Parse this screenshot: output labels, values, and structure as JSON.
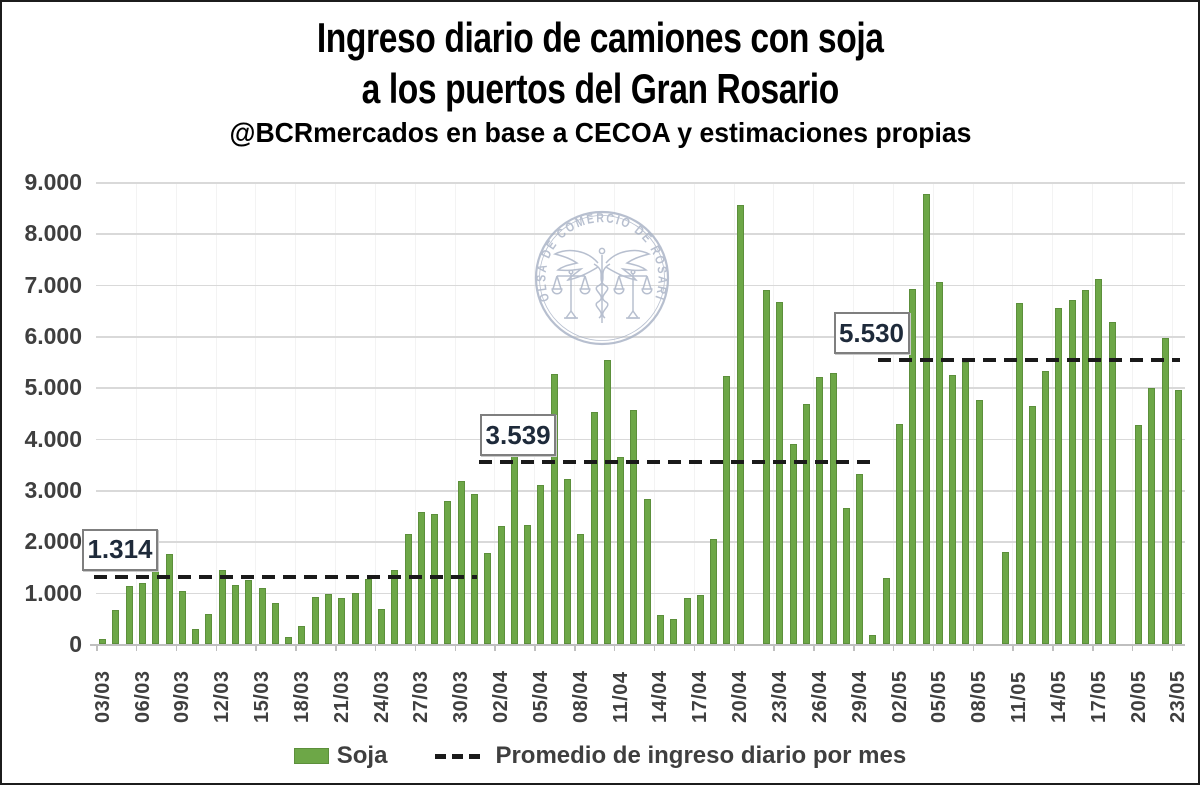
{
  "header": {
    "title_line1": "Ingreso diario de camiones con soja",
    "title_line2": "a los puertos del Gran Rosario",
    "source": "@BCRmercados en base a CECOA y estimaciones propias"
  },
  "legend": {
    "soja_label": "Soja",
    "average_label": "Promedio de ingreso diario por mes"
  },
  "watermark": {
    "text": "BOLSA DE COMERCIO DE ROSARIO"
  },
  "colors": {
    "bar_fill": "#6DA747",
    "bar_edge": "#5C8F3B",
    "average_line": "#1A1A1A",
    "gridline": "#D9D9D9",
    "axis_line": "#BFBFBF",
    "text_dark": "#3F3F3F",
    "watermark": "#A8B2C5",
    "label_box_border": "#7F7F7F",
    "label_text": "#1E2A3A"
  },
  "chart_data": {
    "type": "bar",
    "title": "Ingreso diario de camiones con soja a los puertos del Gran Rosario",
    "subtitle": "@BCRmercados en base a CECOA y estimaciones propias",
    "xlabel": "",
    "ylabel": "",
    "ylim": [
      0,
      9000
    ],
    "y_tick_labels": [
      "9.000",
      "8.000",
      "7.000",
      "6.000",
      "5.000",
      "4.000",
      "3.000",
      "2.000",
      "1.000",
      "0"
    ],
    "x_label_interval": 3,
    "x_tick_labels": [
      "03/03",
      "06/03",
      "09/03",
      "12/03",
      "15/03",
      "18/03",
      "21/03",
      "24/03",
      "27/03",
      "30/03",
      "02/04",
      "05/04",
      "08/04",
      "11/04",
      "14/04",
      "17/04",
      "20/04",
      "23/04",
      "26/04",
      "29/04",
      "02/05",
      "05/05",
      "08/05",
      "11/05",
      "14/05",
      "17/05",
      "20/05",
      "23/05"
    ],
    "grid": "horizontal",
    "legend_position": "bottom",
    "series_name": "Soja",
    "categories": [
      "03/03",
      "04/03",
      "05/03",
      "06/03",
      "07/03",
      "08/03",
      "09/03",
      "10/03",
      "11/03",
      "12/03",
      "13/03",
      "14/03",
      "15/03",
      "16/03",
      "17/03",
      "18/03",
      "19/03",
      "20/03",
      "21/03",
      "22/03",
      "23/03",
      "24/03",
      "25/03",
      "26/03",
      "27/03",
      "28/03",
      "29/03",
      "30/03",
      "31/03",
      "01/04",
      "02/04",
      "03/04",
      "04/04",
      "05/04",
      "06/04",
      "07/04",
      "08/04",
      "09/04",
      "10/04",
      "11/04",
      "12/04",
      "13/04",
      "14/04",
      "15/04",
      "16/04",
      "17/04",
      "18/04",
      "19/04",
      "20/04",
      "21/04",
      "22/04",
      "23/04",
      "24/04",
      "25/04",
      "26/04",
      "27/04",
      "28/04",
      "29/04",
      "30/04",
      "01/05",
      "02/05",
      "03/05",
      "04/05",
      "05/05",
      "06/05",
      "07/05",
      "08/05",
      "09/05",
      "10/05",
      "11/05",
      "12/05",
      "13/05",
      "14/05",
      "15/05",
      "16/05",
      "17/05",
      "18/05",
      "19/05",
      "20/05",
      "21/05",
      "22/05",
      "23/05"
    ],
    "values": [
      90,
      660,
      1140,
      1190,
      1760,
      1760,
      1030,
      300,
      580,
      1440,
      1160,
      1240,
      1090,
      800,
      140,
      360,
      920,
      980,
      890,
      990,
      1270,
      690,
      1450,
      2140,
      2570,
      2540,
      2780,
      3180,
      2920,
      1780,
      2290,
      3770,
      2310,
      3090,
      5270,
      3220,
      2150,
      4520,
      5540,
      3640,
      4550,
      2830,
      560,
      480,
      900,
      950,
      2040,
      5230,
      8550,
      0,
      6900,
      6660,
      3900,
      4670,
      5200,
      5280,
      2660,
      3320,
      170,
      1290,
      4280,
      6920,
      8770,
      7050,
      5250,
      5490,
      4750,
      0,
      1790,
      6640,
      4630,
      5320,
      6550,
      6700,
      6900,
      7120,
      6270,
      0,
      4260,
      4990,
      5970,
      4950
    ],
    "averages": [
      {
        "label": "1.314",
        "value": 1314,
        "start_index": 0,
        "end_index": 28,
        "label_dx": -12
      },
      {
        "label": "3.539",
        "value": 3539,
        "start_index": 29,
        "end_index": 58,
        "label_dx": 1
      },
      {
        "label": "5.530",
        "value": 5530,
        "start_index": 59,
        "end_index": 81,
        "label_dx": -44
      }
    ]
  }
}
